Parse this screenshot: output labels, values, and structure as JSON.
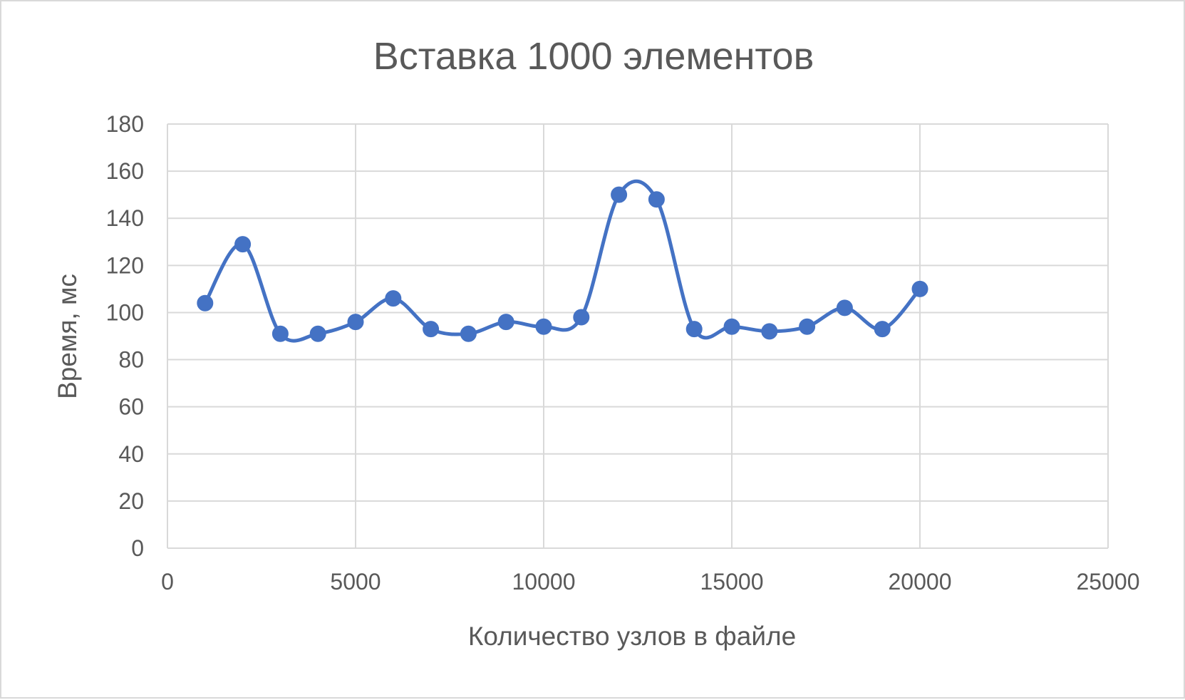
{
  "chart_data": {
    "type": "line",
    "title": "Вставка 1000 элементов",
    "xlabel": "Количество узлов в файле",
    "ylabel": "Время, мс",
    "xlim": [
      0,
      25000
    ],
    "ylim": [
      0,
      180
    ],
    "x_ticks": [
      0,
      5000,
      10000,
      15000,
      20000,
      25000
    ],
    "y_ticks": [
      0,
      20,
      40,
      60,
      80,
      100,
      120,
      140,
      160,
      180
    ],
    "grid": true,
    "legend": "none",
    "smooth": true,
    "series": [
      {
        "color": "#4472c4",
        "marker": "circle",
        "x": [
          1000,
          2000,
          3000,
          4000,
          5000,
          6000,
          7000,
          8000,
          9000,
          10000,
          11000,
          12000,
          13000,
          14000,
          15000,
          16000,
          17000,
          18000,
          19000,
          20000
        ],
        "y": [
          104,
          129,
          91,
          91,
          96,
          106,
          93,
          91,
          96,
          94,
          98,
          150,
          148,
          93,
          94,
          92,
          94,
          102,
          93,
          110
        ]
      }
    ]
  }
}
